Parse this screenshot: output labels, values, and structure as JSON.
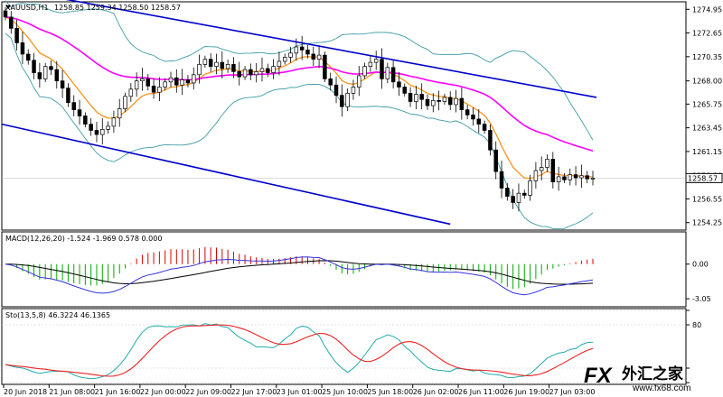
{
  "chart_data": [
    {
      "type": "candlestick",
      "title": "XAUUSD,H1",
      "ohlc_label": "1258.85 1259.34 1258.50 1258.57",
      "symbol": "",
      "last_price": 1258.57,
      "last_price_label": "1258.57",
      "ylim": [
        1253.7,
        1275.5
      ],
      "y_ticks": [
        1274.95,
        1272.65,
        1270.35,
        1268.0,
        1265.75,
        1263.45,
        1261.15,
        1258.8,
        1256.55,
        1254.25
      ],
      "y_tick_labels": [
        "1274.95",
        "1272.65",
        "1270.35",
        "1268.00",
        "1265.75",
        "1263.45",
        "1261.15",
        "1258.80",
        "1256.55",
        "1254.25"
      ],
      "x_tick_labels": [
        "20 Jun 2018",
        "21 Jun 08:00",
        "21 Jun 16:00",
        "22 Jun 00:00",
        "22 Jun 09:00",
        "22 Jun 17:00",
        "23 Jun 01:00",
        "25 Jun 10:00",
        "25 Jun 18:00",
        "26 Jun 02:00",
        "26 Jun 11:00",
        "26 Jun 19:00",
        "27 Jun 03:00"
      ],
      "closes": [
        1274.2,
        1273.1,
        1271.7,
        1270.6,
        1270.0,
        1268.8,
        1268.2,
        1269.4,
        1269.1,
        1268.0,
        1267.3,
        1265.9,
        1265.2,
        1264.6,
        1263.8,
        1263.2,
        1262.8,
        1263.3,
        1263.6,
        1264.4,
        1265.3,
        1266.5,
        1267.2,
        1268.0,
        1268.2,
        1267.5,
        1266.9,
        1267.4,
        1267.9,
        1268.3,
        1267.6,
        1268.1,
        1267.8,
        1268.6,
        1269.6,
        1270.1,
        1269.4,
        1269.8,
        1269.2,
        1269.6,
        1268.9,
        1268.4,
        1269.1,
        1268.6,
        1268.9,
        1269.2,
        1268.8,
        1269.4,
        1269.9,
        1270.3,
        1270.7,
        1271.3,
        1271.0,
        1270.6,
        1270.1,
        1270.5,
        1268.2,
        1267.6,
        1266.6,
        1265.5,
        1266.8,
        1267.4,
        1268.5,
        1269.4,
        1269.8,
        1270.1,
        1268.2,
        1269.3,
        1267.9,
        1267.4,
        1266.8,
        1266.0,
        1266.7,
        1266.2,
        1265.6,
        1266.1,
        1266.0,
        1266.4,
        1265.7,
        1266.3,
        1265.2,
        1264.7,
        1264.3,
        1263.8,
        1263.2,
        1261.3,
        1259.2,
        1257.6,
        1256.8,
        1256.2,
        1257.1,
        1256.9,
        1258.3,
        1259.3,
        1259.6,
        1260.4,
        1258.2,
        1258.7,
        1258.4,
        1258.9,
        1258.6,
        1258.8,
        1258.5,
        1258.57
      ],
      "moving_averages": [
        {
          "name": "",
          "color": "#f7941d",
          "period": 8
        },
        {
          "name": "",
          "color": "#ff00ff",
          "period": 34
        }
      ],
      "bollinger": {
        "color": "#3e9ca5",
        "period": 20,
        "deviations": 2
      },
      "channel_lines": {
        "color": "#0000cc"
      }
    },
    {
      "type": "line",
      "title": "MACD(12,26,20) -1.524 -1.969 0.578 0.000",
      "ylim": [
        -3.6,
        2.6
      ],
      "y_ticks": [
        0.0,
        -3.05
      ],
      "y_tick_labels": [
        "0.00",
        "-3.05"
      ],
      "series": [
        {
          "name": "",
          "color": "#000000",
          "kind": "signal"
        },
        {
          "name": "",
          "color": "#3333dd",
          "kind": "macd"
        },
        {
          "name": "",
          "colors": [
            "#00aa00",
            "#dd0000"
          ],
          "kind": "histogram"
        }
      ]
    },
    {
      "type": "line",
      "title": "Sto(13,5,8) 46.3224 46.1365",
      "ylim": [
        0,
        100
      ],
      "y_ticks": [
        100,
        80,
        20,
        0
      ],
      "y_tick_labels": [
        "",
        "80",
        "",
        ""
      ],
      "series": [
        {
          "name": "",
          "color": "#ee2222",
          "kind": "slow"
        },
        {
          "name": "",
          "color": "#22aaaa",
          "kind": "fast"
        }
      ]
    }
  ],
  "watermark": {
    "brand_fx": "FX",
    "brand_cn": "外汇之家",
    "url": "www.fx68.com",
    "colors": {
      "fx": "#1a4fa3",
      "cn": "#000000"
    }
  }
}
